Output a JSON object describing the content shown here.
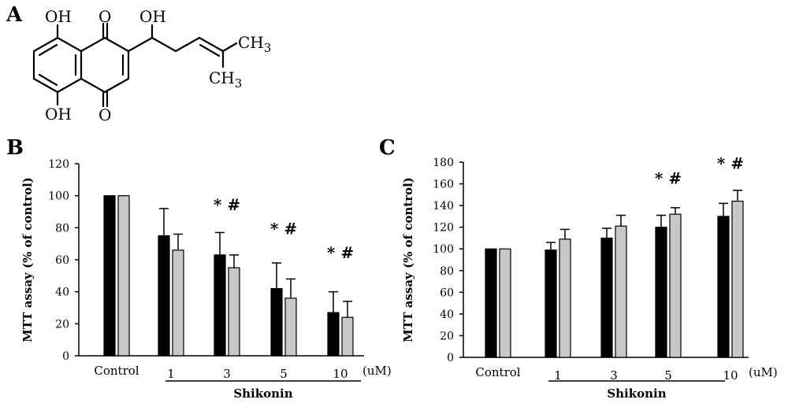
{
  "panels": {
    "a": "A",
    "b": "B",
    "c": "C"
  },
  "structure_labels": {
    "oh_top": "OH",
    "oh_bottom": "OH",
    "oh_chain": "OH",
    "o_top": "O",
    "o_bottom": "O",
    "ch3_top": "CH3",
    "ch3_bottom": "CH3"
  },
  "colors": {
    "series1": "#000000",
    "series2": "#c8c8c8"
  },
  "chart_data": [
    {
      "panel": "B",
      "type": "bar",
      "ylabel": "MTT assay (% of control)",
      "xunit": "(uM)",
      "group_label": "Shikonin",
      "categories": [
        "Control",
        "1",
        "3",
        "5",
        "10"
      ],
      "ylim": [
        0,
        120
      ],
      "yticks": [
        0,
        20,
        40,
        60,
        80,
        100,
        120
      ],
      "series": [
        {
          "values": [
            100,
            75,
            63,
            42,
            27
          ],
          "errors": [
            0,
            17,
            14,
            16,
            13
          ]
        },
        {
          "values": [
            100,
            66,
            55,
            36,
            24
          ],
          "errors": [
            0,
            10,
            8,
            12,
            10
          ]
        }
      ],
      "annotations": [
        {
          "category": "3",
          "text": "* #",
          "y": 91
        },
        {
          "category": "5",
          "text": "* #",
          "y": 76
        },
        {
          "category": "10",
          "text": "* #",
          "y": 61
        }
      ]
    },
    {
      "panel": "C",
      "type": "bar",
      "ylabel": "MTT assay (% of control)",
      "xunit": "(uM)",
      "group_label": "Shikonin",
      "categories": [
        "Control",
        "1",
        "3",
        "5",
        "10"
      ],
      "ylim": [
        0,
        180
      ],
      "yticks": [
        0,
        20,
        40,
        60,
        80,
        100,
        120,
        140,
        160,
        180
      ],
      "series": [
        {
          "values": [
            100,
            99,
            110,
            120,
            130
          ],
          "errors": [
            0,
            7,
            9,
            11,
            12
          ]
        },
        {
          "values": [
            100,
            109,
            121,
            132,
            144
          ],
          "errors": [
            0,
            9,
            10,
            6,
            10
          ]
        }
      ],
      "annotations": [
        {
          "category": "5",
          "text": "* #",
          "y": 160
        },
        {
          "category": "10",
          "text": "* #",
          "y": 174
        }
      ]
    }
  ]
}
